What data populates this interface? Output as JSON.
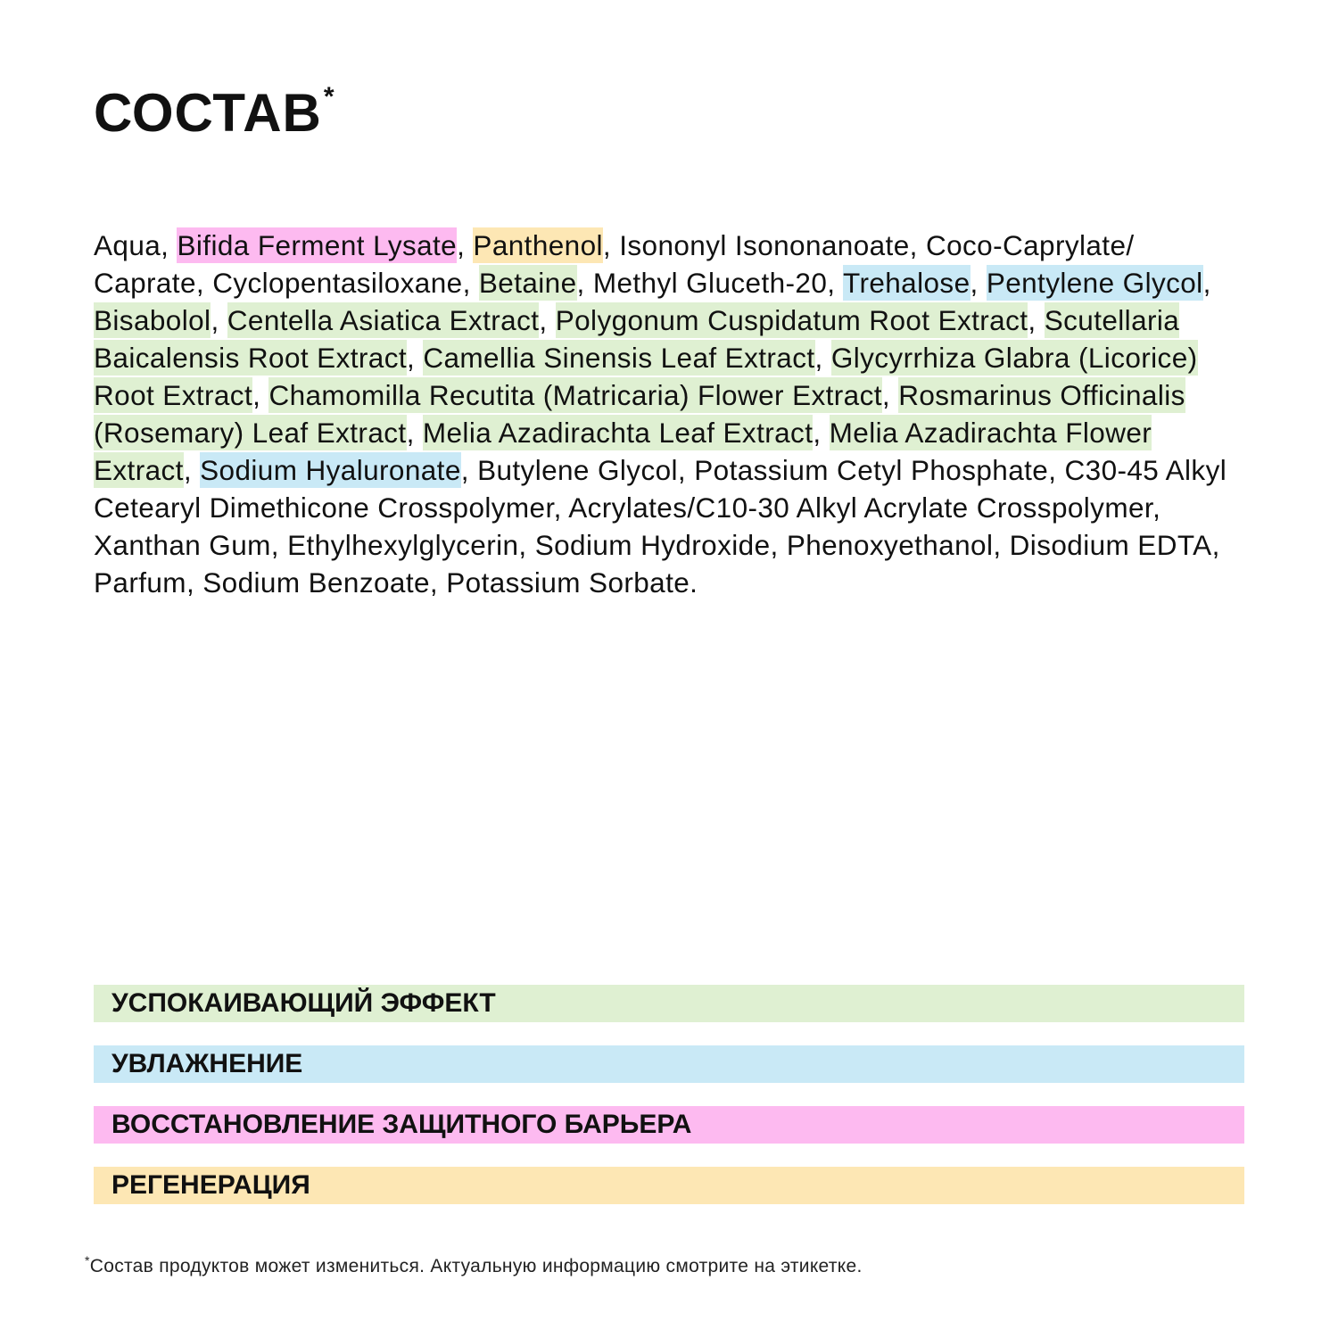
{
  "title": "СОСТАВ",
  "title_mark": "*",
  "colors": {
    "calming": "#dff0d2",
    "moisturizing": "#c9e9f6",
    "barrier": "#fdbaf0",
    "regeneration": "#fde7b4"
  },
  "ingredients": [
    {
      "name": "Aqua",
      "category": ""
    },
    {
      "name": "Bifida Ferment Lysate",
      "category": "barrier"
    },
    {
      "name": "Panthenol",
      "category": "regeneration"
    },
    {
      "name": "Isononyl Isononanoate",
      "category": ""
    },
    {
      "name": "Coco-Caprylate/ Caprate",
      "category": ""
    },
    {
      "name": "Cyclopentasiloxane",
      "category": ""
    },
    {
      "name": "Betaine",
      "category": "calming"
    },
    {
      "name": "Methyl Gluceth-20",
      "category": ""
    },
    {
      "name": "Trehalose",
      "category": "moisturizing"
    },
    {
      "name": "Pentylene Glycol",
      "category": "moisturizing"
    },
    {
      "name": "Bisabolol",
      "category": "calming"
    },
    {
      "name": "Centella Asiatica Extract",
      "category": "calming"
    },
    {
      "name": "Polygonum Cuspidatum Root Extract",
      "category": "calming"
    },
    {
      "name": "Scutellaria Baicalensis Root Extract",
      "category": "calming"
    },
    {
      "name": "Camellia Sinensis Leaf Extract",
      "category": "calming"
    },
    {
      "name": "Glycyrrhiza Glabra (Licorice) Root Extract",
      "category": "calming"
    },
    {
      "name": "Chamomilla Recutita (Matricaria) Flower Extract",
      "category": "calming"
    },
    {
      "name": "Rosmarinus Officinalis (Rosemary) Leaf Extract",
      "category": "calming"
    },
    {
      "name": "Melia Azadirachta Leaf Extract",
      "category": "calming"
    },
    {
      "name": "Melia Azadirachta Flower Extract",
      "category": "calming"
    },
    {
      "name": "Sodium Hyaluronate",
      "category": "moisturizing"
    },
    {
      "name": "Butylene Glycol",
      "category": ""
    },
    {
      "name": "Potassium Cetyl Phosphate",
      "category": ""
    },
    {
      "name": "C30-45 Alkyl Cetearyl Dimethicone Crosspolymer",
      "category": ""
    },
    {
      "name": "Acrylates/C10-30 Alkyl Acrylate Crosspolymer",
      "category": ""
    },
    {
      "name": "Xanthan Gum",
      "category": ""
    },
    {
      "name": "Ethylhexylglycerin",
      "category": ""
    },
    {
      "name": "Sodium Hydroxide",
      "category": ""
    },
    {
      "name": "Phenoxyethanol",
      "category": ""
    },
    {
      "name": "Disodium EDTA",
      "category": ""
    },
    {
      "name": "Parfum",
      "category": ""
    },
    {
      "name": "Sodium Benzoate",
      "category": ""
    },
    {
      "name": "Potassium Sorbate",
      "category": ""
    }
  ],
  "separator": ", ",
  "terminator": ".",
  "legend": [
    {
      "label": "УСПОКАИВАЮЩИЙ ЭФФЕКТ",
      "category": "calming"
    },
    {
      "label": "УВЛАЖНЕНИЕ",
      "category": "moisturizing"
    },
    {
      "label": "ВОССТАНОВЛЕНИЕ ЗАЩИТНОГО БАРЬЕРА",
      "category": "barrier"
    },
    {
      "label": "РЕГЕНЕРАЦИЯ",
      "category": "regeneration"
    }
  ],
  "footnote": {
    "mark": "*",
    "text": "Состав продуктов может измениться. Актуальную информацию смотрите на этикетке."
  }
}
